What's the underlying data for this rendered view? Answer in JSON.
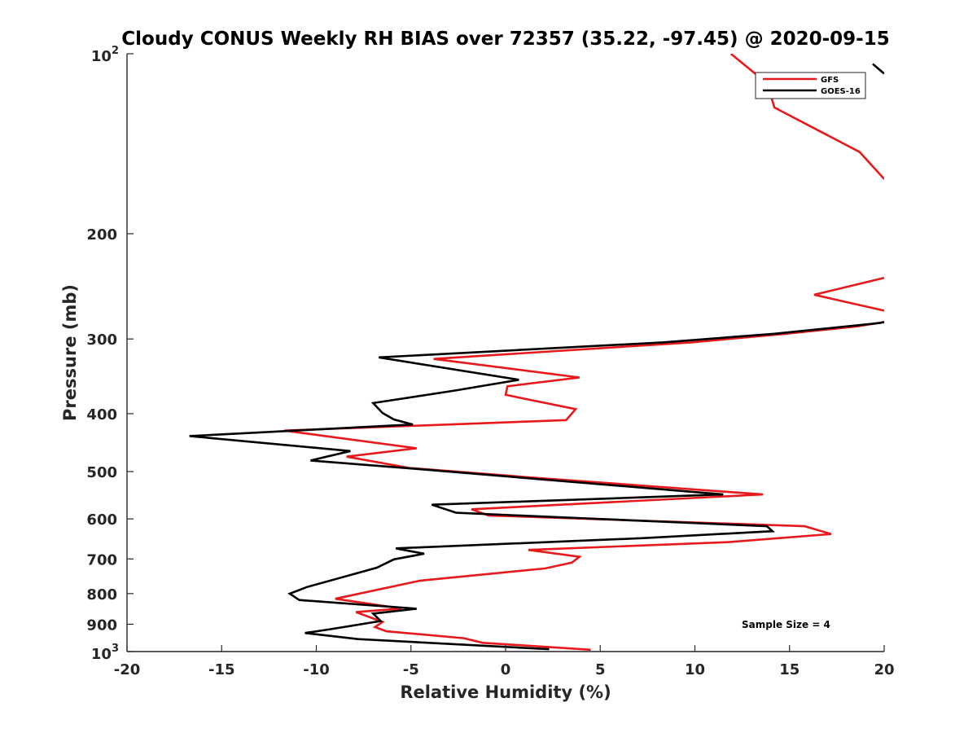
{
  "chart_data": {
    "type": "line",
    "orientation": "profile",
    "title": "Cloudy CONUS Weekly RH BIAS over 72357 (35.22, -97.45) @ 2020-09-15",
    "xlabel": "Relative Humidity (%)",
    "ylabel": "Pressure (mb)",
    "xlim": [
      -20,
      20
    ],
    "ylim": [
      100,
      1000
    ],
    "yscale": "log",
    "y_reversed": true,
    "grid": false,
    "legend_placement": "top-right",
    "x_ticks": [
      "-20",
      "-15",
      "-10",
      "-5",
      "0",
      "5",
      "10",
      "15",
      "20"
    ],
    "x_tick_values": [
      -20,
      -15,
      -10,
      -5,
      0,
      5,
      10,
      15,
      20
    ],
    "y_ticks": [
      {
        "value": 100,
        "label": "10",
        "sup": "2"
      },
      {
        "value": 200,
        "label": "200",
        "sup": ""
      },
      {
        "value": 300,
        "label": "300",
        "sup": ""
      },
      {
        "value": 400,
        "label": "400",
        "sup": ""
      },
      {
        "value": 500,
        "label": "500",
        "sup": ""
      },
      {
        "value": 600,
        "label": "600",
        "sup": ""
      },
      {
        "value": 700,
        "label": "700",
        "sup": ""
      },
      {
        "value": 800,
        "label": "800",
        "sup": ""
      },
      {
        "value": 900,
        "label": "900",
        "sup": ""
      },
      {
        "value": 1000,
        "label": "10",
        "sup": "3"
      }
    ],
    "annotation": "Sample Size = 4",
    "series": [
      {
        "name": "GFS",
        "color": "#e8191a",
        "points": [
          [
            11.9,
            100
          ],
          [
            13.8,
            112
          ],
          [
            14.2,
            123
          ],
          [
            18.7,
            146
          ],
          [
            20.0,
            162
          ],
          [
            null,
            null
          ],
          [
            20.0,
            237
          ],
          [
            16.3,
            253
          ],
          [
            20.0,
            269
          ],
          [
            null,
            null
          ],
          [
            20.0,
            281
          ],
          [
            18.5,
            286
          ],
          [
            14.8,
            294
          ],
          [
            9.8,
            304
          ],
          [
            -3.8,
            324
          ],
          [
            3.9,
            348
          ],
          [
            0.1,
            360
          ],
          [
            0.0,
            372
          ],
          [
            3.7,
            393
          ],
          [
            3.2,
            410
          ],
          [
            -11.7,
            427
          ],
          [
            -4.7,
            457
          ],
          [
            -8.4,
            472
          ],
          [
            -5.1,
            493
          ],
          [
            1.2,
            511
          ],
          [
            13.6,
            546
          ],
          [
            -1.8,
            578
          ],
          [
            -0.9,
            592
          ],
          [
            15.8,
            617
          ],
          [
            17.2,
            636
          ],
          [
            11.8,
            656
          ],
          [
            1.2,
            676
          ],
          [
            3.9,
            694
          ],
          [
            3.5,
            710
          ],
          [
            2.1,
            726
          ],
          [
            -4.5,
            761
          ],
          [
            -9.0,
            816
          ],
          [
            -5.5,
            847
          ],
          [
            -7.9,
            859
          ],
          [
            -6.5,
            892
          ],
          [
            -6.9,
            910
          ],
          [
            -6.3,
            925
          ],
          [
            -2.2,
            950
          ],
          [
            -1.2,
            967
          ],
          [
            4.5,
            993
          ]
        ]
      },
      {
        "name": "GOES-16",
        "color": "#000000",
        "points": [
          [
            20.0,
            281
          ],
          [
            19.8,
            282
          ],
          [
            14.2,
            294
          ],
          [
            8.3,
            304
          ],
          [
            -6.7,
            322
          ],
          [
            0.7,
            351
          ],
          [
            -2.7,
            366
          ],
          [
            -7.0,
            384
          ],
          [
            -6.5,
            399
          ],
          [
            -5.9,
            409
          ],
          [
            -4.9,
            417
          ],
          [
            -16.7,
            436
          ],
          [
            -8.2,
            462
          ],
          [
            -10.3,
            479
          ],
          [
            -5.0,
            494
          ],
          [
            11.5,
            546
          ],
          [
            -3.9,
            568
          ],
          [
            -2.6,
            586
          ],
          [
            13.8,
            617
          ],
          [
            14.1,
            629
          ],
          [
            7.3,
            646
          ],
          [
            -5.8,
            672
          ],
          [
            -4.3,
            686
          ],
          [
            -5.9,
            701
          ],
          [
            -6.8,
            724
          ],
          [
            -10.5,
            780
          ],
          [
            -11.4,
            800
          ],
          [
            -10.9,
            820
          ],
          [
            -4.7,
            848
          ],
          [
            -7.0,
            864
          ],
          [
            -6.6,
            889
          ],
          [
            -9.2,
            917
          ],
          [
            -10.6,
            931
          ],
          [
            -7.8,
            953
          ],
          [
            2.3,
            991
          ]
        ]
      }
    ],
    "extra_segments": [
      {
        "series": "GOES-16",
        "points": [
          [
            19.4,
            104
          ],
          [
            20.0,
            108
          ]
        ]
      }
    ]
  }
}
